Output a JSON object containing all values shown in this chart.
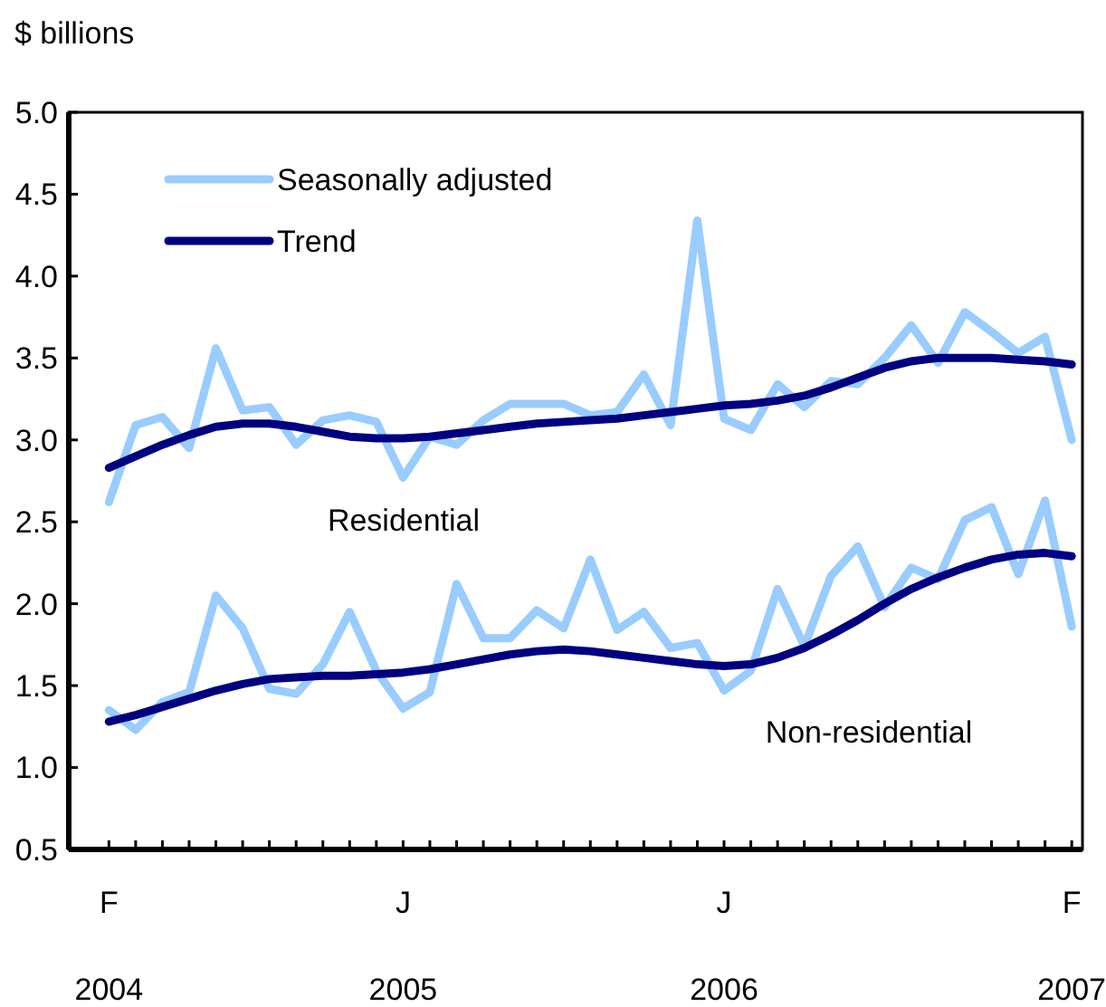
{
  "chart_data": {
    "type": "line",
    "ylabel": "$ billions",
    "categories": [
      "F",
      null,
      null,
      null,
      null,
      null,
      null,
      null,
      null,
      null,
      null,
      "J",
      null,
      null,
      null,
      null,
      null,
      null,
      null,
      null,
      null,
      null,
      null,
      "J",
      null,
      null,
      null,
      null,
      null,
      null,
      null,
      null,
      null,
      null,
      null,
      null,
      "F"
    ],
    "series": [
      {
        "name": "Seasonally adjusted",
        "color": "#99ccff",
        "values": [
          2.62,
          3.09,
          3.14,
          2.95,
          3.56,
          3.18,
          3.2,
          2.97,
          3.12,
          3.15,
          3.11,
          2.77,
          3.02,
          2.97,
          3.12,
          3.22,
          3.22,
          3.22,
          3.15,
          3.17,
          3.4,
          3.09,
          4.34,
          3.13,
          3.06,
          3.34,
          3.2,
          3.36,
          3.34,
          3.5,
          3.7,
          3.47,
          3.78,
          3.66,
          3.53,
          3.63,
          3.0
        ]
      },
      {
        "name": "Trend",
        "color": "#000080",
        "values": [
          2.83,
          2.9,
          2.97,
          3.03,
          3.08,
          3.1,
          3.1,
          3.08,
          3.05,
          3.02,
          3.01,
          3.01,
          3.02,
          3.04,
          3.06,
          3.08,
          3.1,
          3.11,
          3.12,
          3.13,
          3.15,
          3.17,
          3.19,
          3.21,
          3.22,
          3.24,
          3.27,
          3.32,
          3.38,
          3.44,
          3.48,
          3.5,
          3.5,
          3.5,
          3.49,
          3.48,
          3.46
        ]
      },
      {
        "color": "#99ccff",
        "values": [
          1.35,
          1.23,
          1.4,
          1.46,
          2.05,
          1.85,
          1.48,
          1.45,
          1.63,
          1.95,
          1.59,
          1.36,
          1.46,
          2.12,
          1.79,
          1.79,
          1.96,
          1.85,
          2.27,
          1.84,
          1.95,
          1.73,
          1.76,
          1.47,
          1.59,
          2.09,
          1.74,
          2.17,
          2.35,
          1.98,
          2.22,
          2.15,
          2.51,
          2.59,
          2.18,
          2.63,
          1.86
        ]
      },
      {
        "color": "#000080",
        "values": [
          1.28,
          1.32,
          1.37,
          1.42,
          1.47,
          1.51,
          1.54,
          1.55,
          1.56,
          1.56,
          1.57,
          1.58,
          1.6,
          1.63,
          1.66,
          1.69,
          1.71,
          1.72,
          1.71,
          1.69,
          1.67,
          1.65,
          1.63,
          1.62,
          1.63,
          1.67,
          1.73,
          1.81,
          1.9,
          2.0,
          2.09,
          2.16,
          2.22,
          2.27,
          2.3,
          2.31,
          2.29
        ]
      }
    ],
    "annotations": [
      "Residential",
      "Non-residential",
      "2004",
      "2005",
      "2006",
      "2007"
    ],
    "ylim": [
      0.5,
      5
    ],
    "yticks": [
      {
        "value": 0.5,
        "label": "0.5"
      },
      {
        "value": 1,
        "label": "1.0"
      },
      {
        "value": 1.5,
        "label": "1.5"
      },
      {
        "value": 2,
        "label": "2.0"
      },
      {
        "value": 2.5,
        "label": "2.5"
      },
      {
        "value": 3,
        "label": "3.0"
      },
      {
        "value": 3.5,
        "label": "3.5"
      },
      {
        "value": 4,
        "label": "4.0"
      },
      {
        "value": 4.5,
        "label": "4.5"
      },
      {
        "value": 5,
        "label": "5.0"
      }
    ],
    "legend": "top left",
    "grid": false,
    "marker": "none",
    "line_style": "solid"
  }
}
